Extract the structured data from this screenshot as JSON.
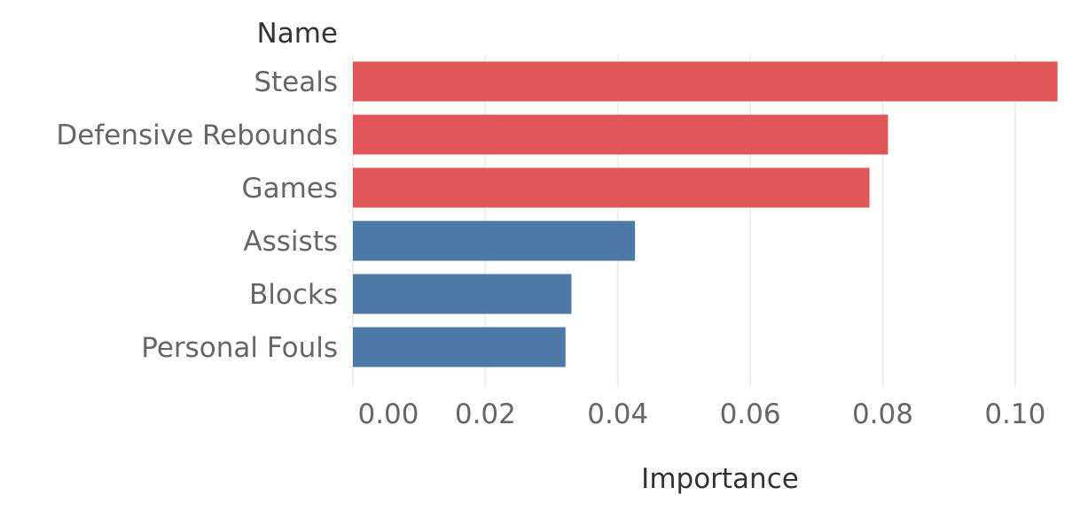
{
  "chart_data": {
    "type": "bar",
    "orientation": "horizontal",
    "row_header": "Name",
    "xlabel": "Importance",
    "ylabel": "",
    "title": "",
    "categories": [
      "Steals",
      "Defensive Rebounds",
      "Games",
      "Assists",
      "Blocks",
      "Personal Fouls"
    ],
    "values": [
      0.1064,
      0.0808,
      0.078,
      0.0426,
      0.033,
      0.0321
    ],
    "bar_colors": [
      "#e15759",
      "#e15759",
      "#e15759",
      "#4e79a7",
      "#4e79a7",
      "#4e79a7"
    ],
    "xlim": [
      0,
      0.111
    ],
    "xticks": [
      0.0,
      0.02,
      0.04,
      0.06,
      0.08,
      0.1
    ],
    "xtick_labels": [
      "0.00",
      "0.02",
      "0.04",
      "0.06",
      "0.08",
      "0.10"
    ],
    "grid": true,
    "legend": false
  }
}
